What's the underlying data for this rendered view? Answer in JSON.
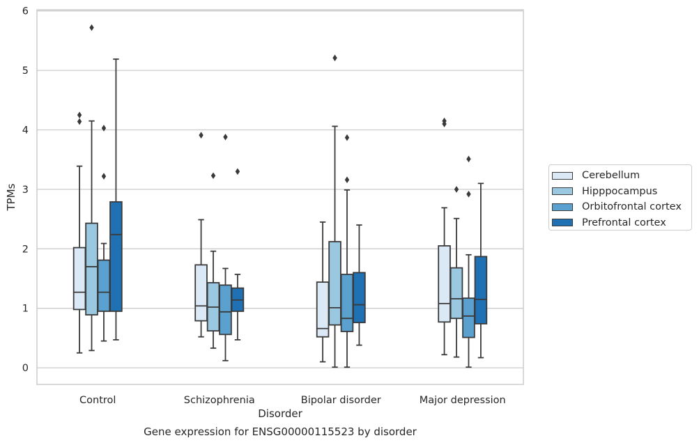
{
  "chart_data": {
    "type": "box",
    "xlabel": "Disorder",
    "ylabel": "TPMs",
    "ylim": [
      -0.28,
      6.02
    ],
    "yticks": [
      0,
      1,
      2,
      3,
      4,
      5,
      6
    ],
    "grid": "horizontal",
    "legend_position": "center-right, outside plot",
    "categories": [
      "Control",
      "Schizophrenia",
      "Bipolar disorder",
      "Major depression"
    ],
    "series": [
      {
        "name": "Cerebellum",
        "color": "#dbe9f6",
        "boxes": [
          {
            "whisker_low": 0.25,
            "q1": 0.98,
            "median": 1.27,
            "q3": 2.02,
            "whisker_high": 3.39,
            "outliers": [
              4.14,
              4.25
            ]
          },
          {
            "whisker_low": 0.52,
            "q1": 0.79,
            "median": 1.04,
            "q3": 1.73,
            "whisker_high": 2.49,
            "outliers": [
              3.91
            ]
          },
          {
            "whisker_low": 0.1,
            "q1": 0.52,
            "median": 0.66,
            "q3": 1.44,
            "whisker_high": 2.45,
            "outliers": []
          },
          {
            "whisker_low": 0.22,
            "q1": 0.77,
            "median": 1.08,
            "q3": 2.05,
            "whisker_high": 2.69,
            "outliers": [
              4.1,
              4.15
            ]
          }
        ]
      },
      {
        "name": "Hipppocampus",
        "color": "#9ac8e0",
        "boxes": [
          {
            "whisker_low": 0.29,
            "q1": 0.89,
            "median": 1.7,
            "q3": 2.43,
            "whisker_high": 4.15,
            "outliers": [
              5.72
            ]
          },
          {
            "whisker_low": 0.33,
            "q1": 0.62,
            "median": 1.02,
            "q3": 1.43,
            "whisker_high": 1.96,
            "outliers": [
              3.23
            ]
          },
          {
            "whisker_low": 0.01,
            "q1": 0.72,
            "median": 1.01,
            "q3": 2.12,
            "whisker_high": 4.06,
            "outliers": [
              5.21
            ]
          },
          {
            "whisker_low": 0.18,
            "q1": 0.83,
            "median": 1.16,
            "q3": 1.68,
            "whisker_high": 2.51,
            "outliers": [
              3.0
            ]
          }
        ]
      },
      {
        "name": "Orbitofrontal cortex",
        "color": "#5aa1cf",
        "boxes": [
          {
            "whisker_low": 0.45,
            "q1": 0.95,
            "median": 1.27,
            "q3": 1.81,
            "whisker_high": 2.09,
            "outliers": [
              3.22,
              4.03
            ]
          },
          {
            "whisker_low": 0.12,
            "q1": 0.56,
            "median": 0.94,
            "q3": 1.39,
            "whisker_high": 1.67,
            "outliers": [
              3.88
            ]
          },
          {
            "whisker_low": 0.01,
            "q1": 0.61,
            "median": 0.83,
            "q3": 1.57,
            "whisker_high": 2.99,
            "outliers": [
              3.16,
              3.87
            ]
          },
          {
            "whisker_low": 0.01,
            "q1": 0.51,
            "median": 0.87,
            "q3": 1.17,
            "whisker_high": 1.9,
            "outliers": [
              2.92,
              3.51
            ]
          }
        ]
      },
      {
        "name": "Prefrontal cortex",
        "color": "#2070b4",
        "boxes": [
          {
            "whisker_low": 0.47,
            "q1": 0.95,
            "median": 2.24,
            "q3": 2.79,
            "whisker_high": 5.19,
            "outliers": []
          },
          {
            "whisker_low": 0.47,
            "q1": 0.95,
            "median": 1.14,
            "q3": 1.34,
            "whisker_high": 1.57,
            "outliers": [
              3.3
            ]
          },
          {
            "whisker_low": 0.38,
            "q1": 0.76,
            "median": 1.06,
            "q3": 1.6,
            "whisker_high": 2.4,
            "outliers": []
          },
          {
            "whisker_low": 0.17,
            "q1": 0.74,
            "median": 1.15,
            "q3": 1.87,
            "whisker_high": 3.1,
            "outliers": []
          }
        ]
      }
    ]
  },
  "caption": "Gene expression for ENSG00000115523 by disorder"
}
